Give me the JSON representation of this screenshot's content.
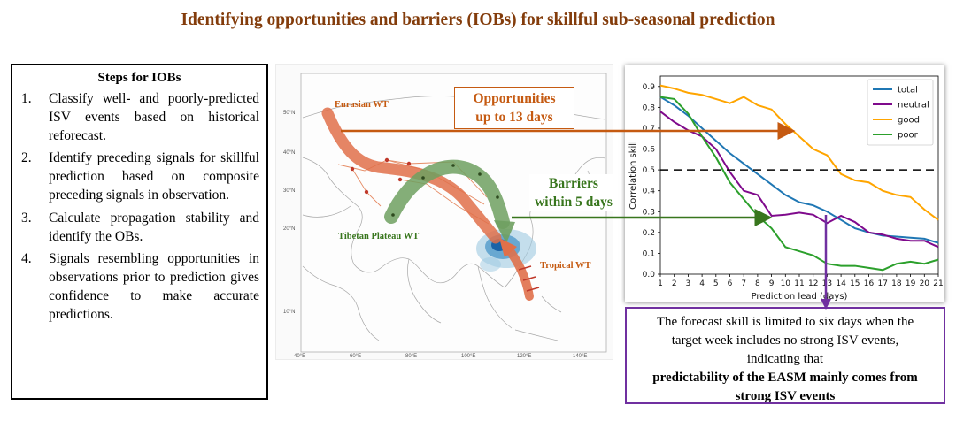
{
  "title": "Identifying opportunities and barriers (IOBs) for skillful sub-seasonal prediction",
  "steps": {
    "heading": "Steps for IOBs",
    "items": [
      {
        "num": "1.",
        "text": "Classify well- and poorly-predicted ISV events based on historical reforecast."
      },
      {
        "num": "2.",
        "text": "Identify preceding signals for skillful prediction based on composite preceding signals in observation."
      },
      {
        "num": "3.",
        "text": "Calculate propagation stability and identify the OBs."
      },
      {
        "num": "4.",
        "text": "Signals resembling opportunities in observations prior to prediction gives confidence to make accurate predictions."
      }
    ]
  },
  "map": {
    "labels": {
      "eurasian": "Eurasian WT",
      "tibetan": "Tibetan Plateau WT",
      "tropical": "Tropical WT"
    },
    "lat_ticks": [
      "50°N",
      "40°N",
      "30°N",
      "20°N",
      "10°N"
    ],
    "lon_ticks": [
      "40°E",
      "60°E",
      "80°E",
      "100°E",
      "120°E",
      "140°E"
    ]
  },
  "annotations": {
    "opportunities": [
      "Opportunities",
      "up to 13 days"
    ],
    "barriers": [
      "Barriers",
      "within 5 days"
    ]
  },
  "colors": {
    "title": "#833c0b",
    "opportunity": "#c55a11",
    "barrier": "#38761d",
    "callout_border": "#7030a0",
    "total": "#1f77b4",
    "neutral": "#7f0a8c",
    "good": "#ffa500",
    "poor": "#2ca02c"
  },
  "chart_data": {
    "type": "line",
    "xlabel": "Prediction lead (days)",
    "ylabel": "Correlation skill",
    "x": [
      1,
      2,
      3,
      4,
      5,
      6,
      7,
      8,
      9,
      10,
      11,
      12,
      13,
      14,
      15,
      16,
      17,
      18,
      19,
      20,
      21
    ],
    "ylim": [
      0,
      0.95
    ],
    "yticks": [
      0.0,
      0.1,
      0.2,
      0.3,
      0.4,
      0.5,
      0.6,
      0.7,
      0.8,
      0.9
    ],
    "ytick_labels": [
      "0.0",
      "0.1",
      "0.2",
      "0.3",
      "0.4",
      "0.5",
      "0.6",
      "0.7",
      "0.8",
      "0.9"
    ],
    "reference_line": 0.5,
    "legend_position": "top-right",
    "series": [
      {
        "name": "total",
        "color": "#1f77b4",
        "values": [
          0.85,
          0.81,
          0.76,
          0.7,
          0.64,
          0.58,
          0.53,
          0.48,
          0.43,
          0.38,
          0.345,
          0.33,
          0.3,
          0.26,
          0.22,
          0.2,
          0.185,
          0.18,
          0.175,
          0.17,
          0.15
        ]
      },
      {
        "name": "neutral",
        "color": "#7f0a8c",
        "values": [
          0.78,
          0.73,
          0.69,
          0.66,
          0.6,
          0.49,
          0.4,
          0.38,
          0.28,
          0.285,
          0.295,
          0.285,
          0.245,
          0.28,
          0.25,
          0.2,
          0.19,
          0.17,
          0.16,
          0.16,
          0.13
        ]
      },
      {
        "name": "good",
        "color": "#ffa500",
        "values": [
          0.905,
          0.89,
          0.87,
          0.86,
          0.84,
          0.82,
          0.85,
          0.81,
          0.79,
          0.72,
          0.66,
          0.6,
          0.57,
          0.48,
          0.45,
          0.44,
          0.4,
          0.38,
          0.37,
          0.31,
          0.26
        ]
      },
      {
        "name": "poor",
        "color": "#2ca02c",
        "values": [
          0.85,
          0.84,
          0.77,
          0.66,
          0.56,
          0.44,
          0.36,
          0.28,
          0.22,
          0.13,
          0.11,
          0.09,
          0.05,
          0.04,
          0.04,
          0.03,
          0.02,
          0.05,
          0.06,
          0.05,
          0.07
        ]
      }
    ]
  },
  "callout": {
    "lines": [
      "The forecast skill is limited to six days when the",
      "target week includes no strong ISV events,",
      "indicating that"
    ],
    "bold_lines": [
      "predictability of the EASM mainly comes from",
      "strong ISV events"
    ]
  }
}
